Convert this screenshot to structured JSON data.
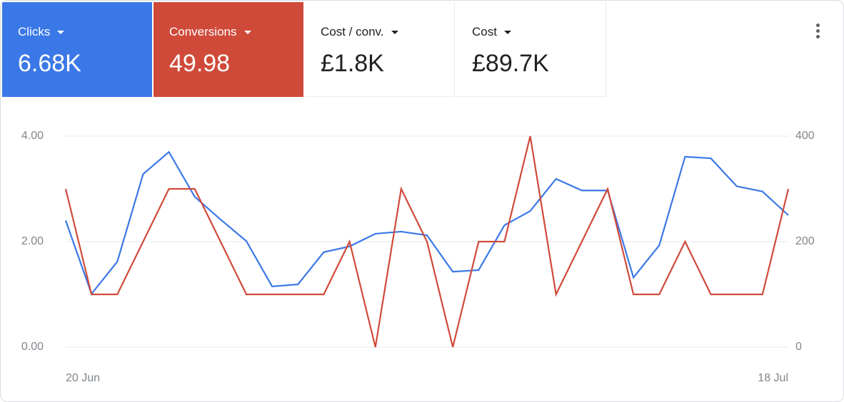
{
  "scorecards": [
    {
      "value": "6.68K"
    },
    {
      "value": "49.98"
    },
    {
      "label": "Cost / conv.",
      "value": "£1.8K"
    },
    {
      "label": "Cost",
      "value": "£89.7K"
    }
  ],
  "chart_data": {
    "type": "line",
    "categories": [
      "20 Jun",
      null,
      null,
      null,
      null,
      null,
      null,
      null,
      null,
      null,
      null,
      null,
      null,
      null,
      null,
      null,
      null,
      null,
      null,
      null,
      null,
      null,
      null,
      null,
      null,
      null,
      null,
      null,
      "18 Jul"
    ],
    "series": [
      {
        "name": "Clicks",
        "color": "#3b78e7",
        "axis": "y2",
        "values": [
          240,
          101,
          162,
          328,
          370,
          285,
          242,
          201,
          115,
          119,
          180,
          191,
          215,
          219,
          212,
          143,
          146,
          231,
          258,
          319,
          297,
          297,
          132,
          193,
          361,
          358,
          305,
          295,
          250
        ]
      },
      {
        "name": "Conversions",
        "color": "#d04a3a",
        "values": [
          3,
          1,
          1,
          2,
          3,
          3,
          2,
          1,
          1,
          1,
          1,
          2,
          0,
          3,
          2,
          0,
          2,
          2,
          4,
          1,
          2,
          3,
          1,
          1,
          2,
          1,
          1,
          1,
          3
        ]
      }
    ],
    "ylim": [
      0,
      4
    ],
    "yticks": [
      {
        "value": 0,
        "label": "0.00"
      },
      {
        "value": 2,
        "label": "2.00"
      },
      {
        "value": 4,
        "label": "4.00"
      }
    ],
    "y2lim": [
      0,
      400
    ],
    "y2ticks": [
      0,
      200,
      400
    ],
    "grid": true
  }
}
